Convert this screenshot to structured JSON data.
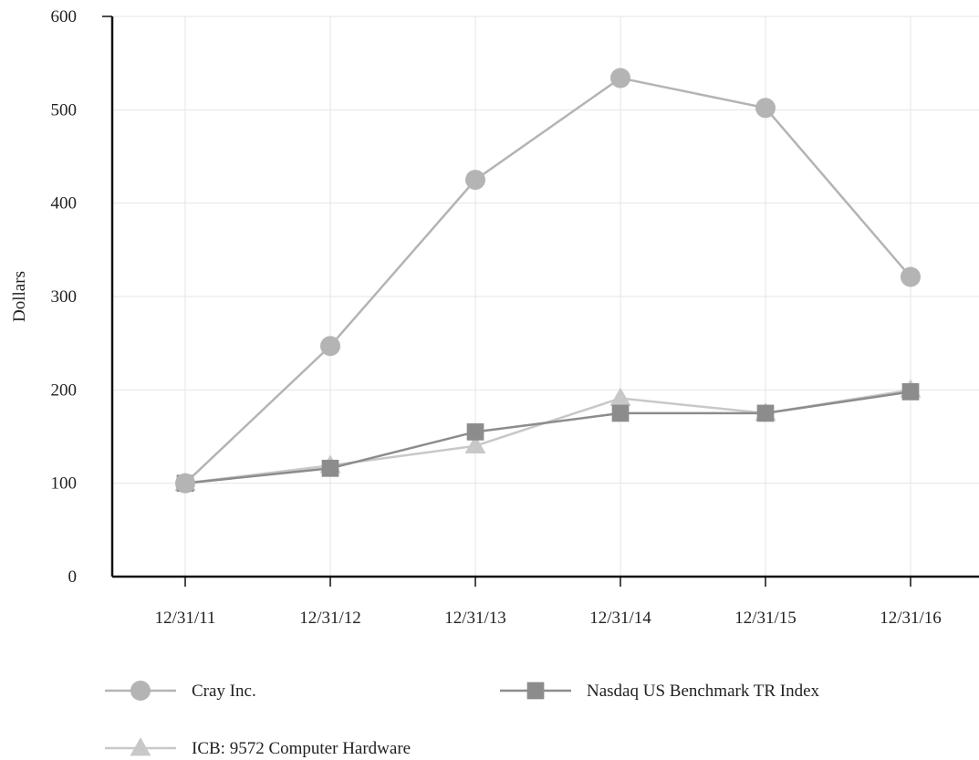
{
  "chart_data": {
    "type": "line",
    "title": "",
    "xlabel": "",
    "ylabel": "Dollars",
    "categories": [
      "12/31/11",
      "12/31/12",
      "12/31/13",
      "12/31/14",
      "12/31/15",
      "12/31/16"
    ],
    "ylim": [
      0,
      600
    ],
    "yticks": [
      0,
      100,
      200,
      300,
      400,
      500,
      600
    ],
    "grid": true,
    "legend_position": "bottom",
    "series": [
      {
        "name": "Cray Inc.",
        "marker": "circle",
        "color": "#b4b4b4",
        "values": [
          100,
          247,
          425,
          534,
          502,
          321
        ]
      },
      {
        "name": "Nasdaq US Benchmark TR Index",
        "marker": "square",
        "color": "#8c8c8c",
        "values": [
          100,
          116,
          155,
          175,
          175,
          198
        ]
      },
      {
        "name": "ICB: 9572 Computer Hardware",
        "marker": "triangle",
        "color": "#c8c8c8",
        "values": [
          100,
          119,
          140,
          191,
          175,
          200
        ]
      }
    ]
  }
}
